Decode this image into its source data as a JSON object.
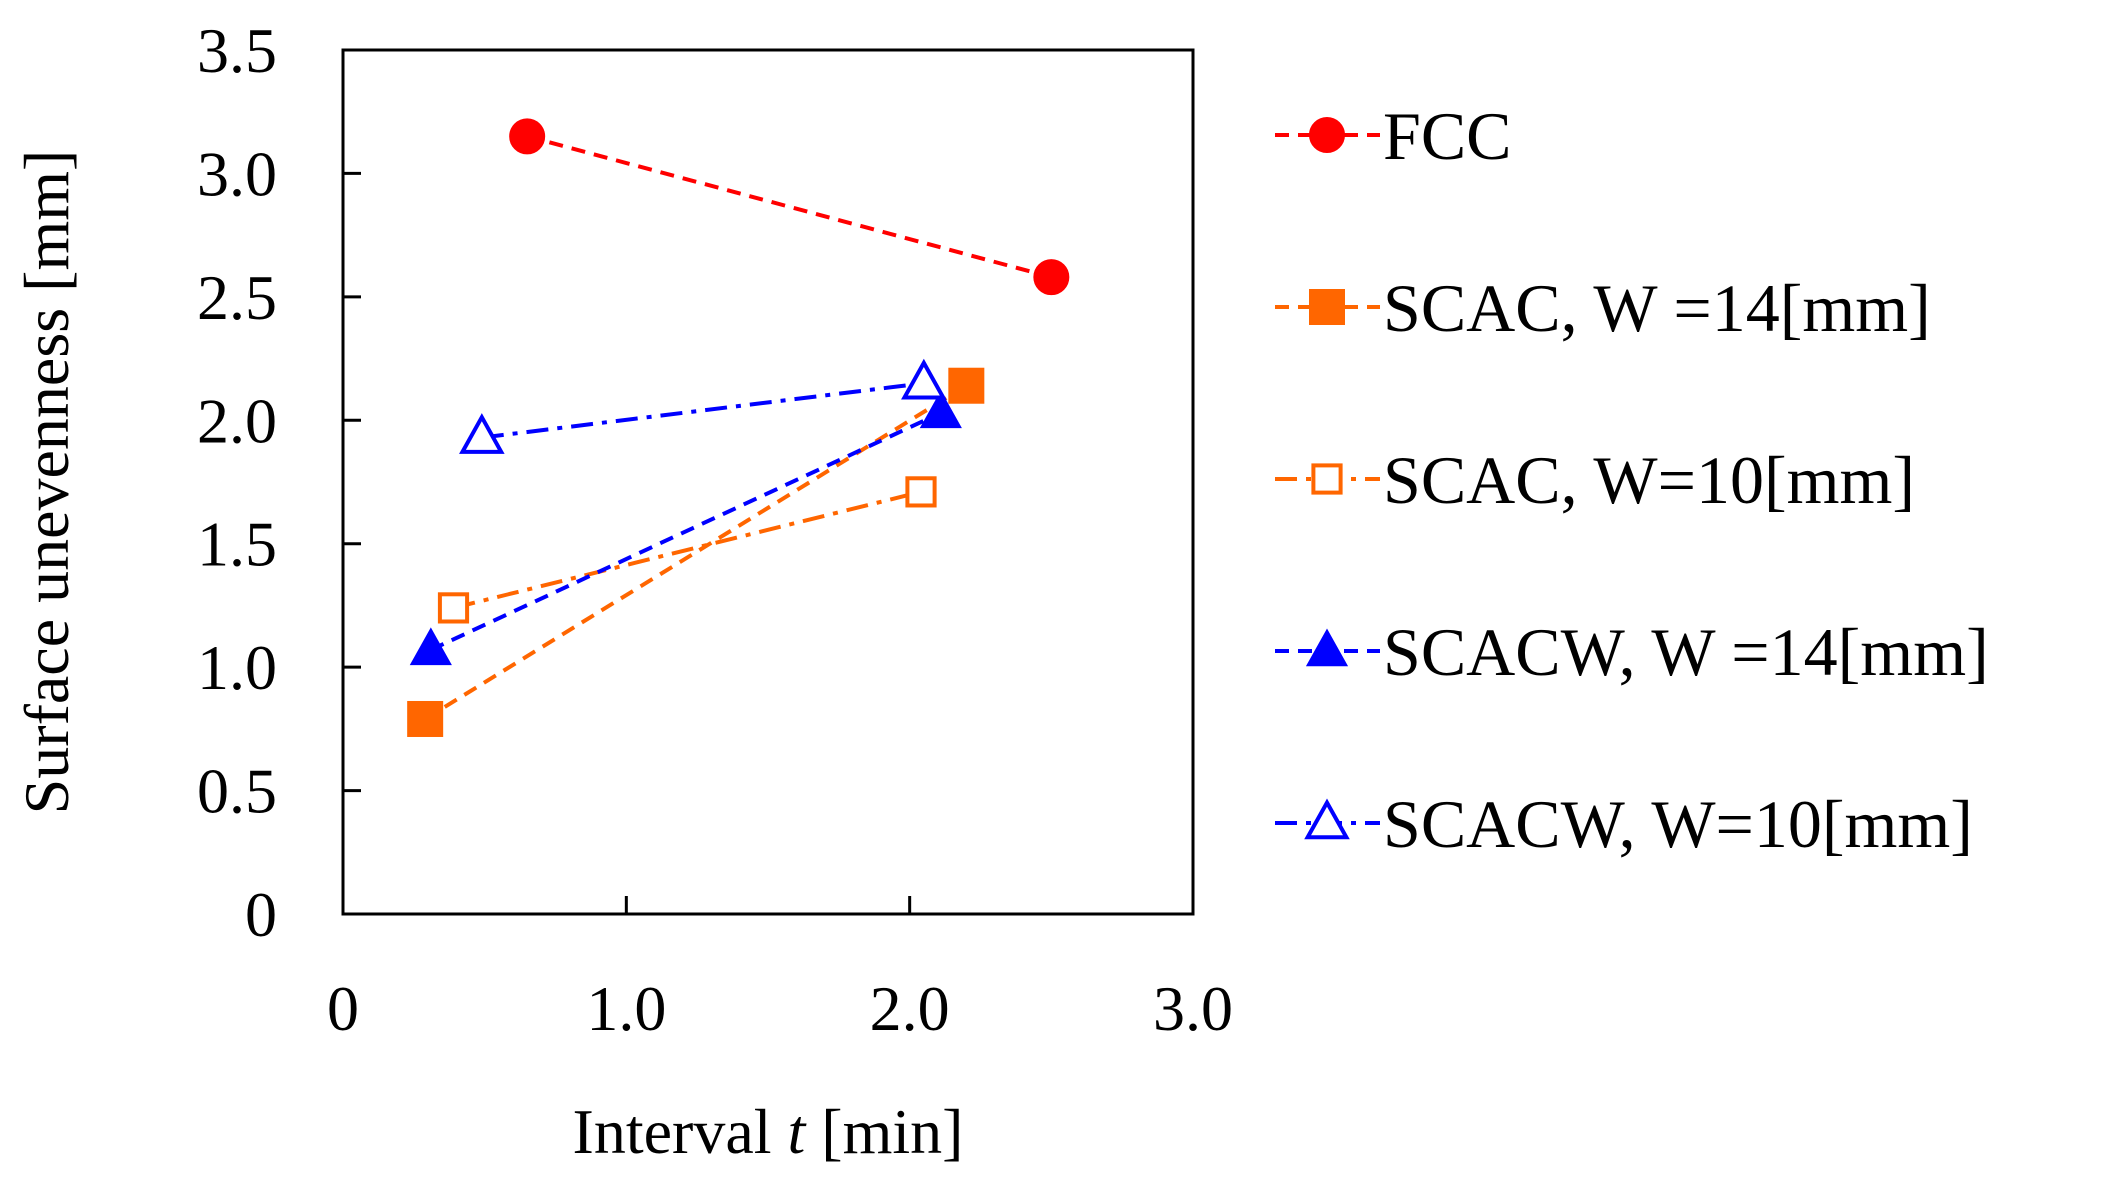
{
  "chart_data": {
    "type": "line",
    "title": "",
    "xlabel_prefix": "Interval ",
    "xlabel_var": "t",
    "xlabel_suffix": " [min]",
    "ylabel": "Surface unevenness [mm]",
    "xlim": [
      0,
      3.0
    ],
    "ylim": [
      0,
      3.5
    ],
    "grid": false,
    "legend_position": "right",
    "x_ticks": [
      {
        "value": 0,
        "label": "0"
      },
      {
        "value": 1.0,
        "label": "1.0"
      },
      {
        "value": 2.0,
        "label": "2.0"
      },
      {
        "value": 3.0,
        "label": "3.0"
      }
    ],
    "y_ticks": [
      {
        "value": 0,
        "label": "0"
      },
      {
        "value": 0.5,
        "label": "0.5"
      },
      {
        "value": 1.0,
        "label": "1.0"
      },
      {
        "value": 1.5,
        "label": "1.5"
      },
      {
        "value": 2.0,
        "label": "2.0"
      },
      {
        "value": 2.5,
        "label": "2.5"
      },
      {
        "value": 3.0,
        "label": "3.0"
      },
      {
        "value": 3.5,
        "label": "3.5"
      }
    ],
    "series": [
      {
        "name": "FCC",
        "color": "#ff0000",
        "marker": "circle",
        "filled": true,
        "line": "dash",
        "points": [
          {
            "x": 0.65,
            "y": 3.15
          },
          {
            "x": 2.5,
            "y": 2.58
          }
        ]
      },
      {
        "name": "SCAC, W =14[mm]",
        "color": "#ff6600",
        "marker": "square",
        "filled": true,
        "line": "dash",
        "points": [
          {
            "x": 0.29,
            "y": 0.79
          },
          {
            "x": 2.2,
            "y": 2.14
          }
        ]
      },
      {
        "name": "SCAC, W=10[mm]",
        "color": "#ff6600",
        "marker": "square",
        "filled": false,
        "line": "dashdot",
        "points": [
          {
            "x": 0.39,
            "y": 1.24
          },
          {
            "x": 2.04,
            "y": 1.71
          }
        ]
      },
      {
        "name": "SCACW, W =14[mm]",
        "color": "#0000ff",
        "marker": "triangle",
        "filled": true,
        "line": "dash",
        "points": [
          {
            "x": 0.31,
            "y": 1.07
          },
          {
            "x": 2.11,
            "y": 2.03
          }
        ]
      },
      {
        "name": "SCACW, W=10[mm]",
        "color": "#0000ff",
        "marker": "triangle",
        "filled": false,
        "line": "dashdot",
        "points": [
          {
            "x": 0.49,
            "y": 1.93
          },
          {
            "x": 2.05,
            "y": 2.15
          }
        ]
      }
    ]
  }
}
